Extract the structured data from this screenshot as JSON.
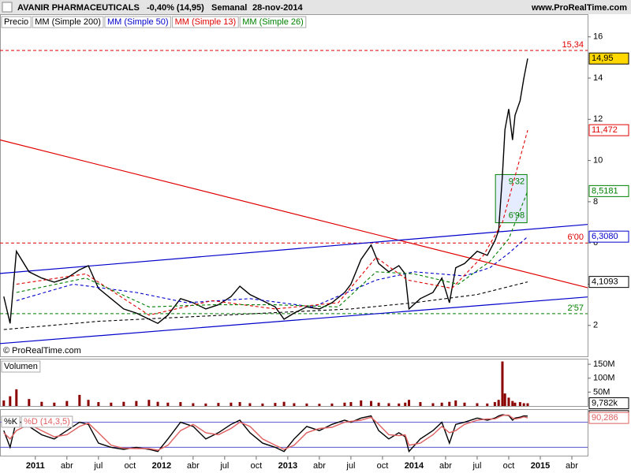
{
  "header": {
    "title": "AVANIR PHARMACEUTICALS",
    "change": "-0,40% (14,95)",
    "period": "Semanal",
    "date": "28-nov-2014",
    "site": "www.ProRealTime.com",
    "copyright": "© ProRealTime.com"
  },
  "chart_data": [
    {
      "type": "line",
      "xlim": [
        2010.72,
        2015.375
      ],
      "ylim": [
        0.5,
        17.1
      ],
      "xticks": [
        2011,
        {
          "value": 2011.25,
          "label": "abr"
        },
        {
          "value": 2011.5,
          "label": "jul"
        },
        {
          "value": 2011.75,
          "label": "oct"
        },
        2012,
        {
          "value": 2012.25,
          "label": "abr"
        },
        {
          "value": 2012.5,
          "label": "jul"
        },
        {
          "value": 2012.75,
          "label": "oct"
        },
        2013,
        {
          "value": 2013.25,
          "label": "abr"
        },
        {
          "value": 2013.5,
          "label": "jul"
        },
        {
          "value": 2013.75,
          "label": "oct"
        },
        2014,
        {
          "value": 2014.25,
          "label": "abr"
        },
        {
          "value": 2014.5,
          "label": "jul"
        },
        {
          "value": 2014.75,
          "label": "oct"
        },
        2015,
        {
          "value": 2015.25,
          "label": "abr"
        }
      ],
      "yticks": [
        2,
        4,
        6,
        8,
        10,
        12,
        14,
        16
      ],
      "x": [
        2010.75,
        2010.8,
        2010.85,
        2010.95,
        2011.05,
        2011.15,
        2011.25,
        2011.35,
        2011.42,
        2011.5,
        2011.6,
        2011.7,
        2011.8,
        2011.9,
        2011.97,
        2012.05,
        2012.15,
        2012.25,
        2012.35,
        2012.45,
        2012.55,
        2012.62,
        2012.7,
        2012.8,
        2012.9,
        2012.97,
        2013.05,
        2013.15,
        2013.25,
        2013.35,
        2013.45,
        2013.5,
        2013.58,
        2013.66,
        2013.72,
        2013.8,
        2013.88,
        2013.93,
        2013.96,
        2014.05,
        2014.15,
        2014.22,
        2014.28,
        2014.33,
        2014.4,
        2014.5,
        2014.58,
        2014.64,
        2014.67,
        2014.7,
        2014.72,
        2014.75,
        2014.78,
        2014.8,
        2014.84,
        2014.87,
        2014.9
      ],
      "series": [
        {
          "name": "Precio",
          "color": "#000000",
          "dash": false,
          "values": [
            3.4,
            2.1,
            5.6,
            4.6,
            4.3,
            4.1,
            4.3,
            4.7,
            4.9,
            3.8,
            3.3,
            2.8,
            2.6,
            2.3,
            2.1,
            2.5,
            3.3,
            3.1,
            2.8,
            3.0,
            3.4,
            3.9,
            3.5,
            3.2,
            2.9,
            2.3,
            2.6,
            2.9,
            2.8,
            3.1,
            3.6,
            4.0,
            5.2,
            5.9,
            5.0,
            4.6,
            4.9,
            4.5,
            2.8,
            3.3,
            3.6,
            4.3,
            3.1,
            4.8,
            5.0,
            5.6,
            5.4,
            6.1,
            6.6,
            9.3,
            11.5,
            12.5,
            11.0,
            12.2,
            12.9,
            14.0,
            14.95
          ]
        },
        {
          "name": "MM (Simple 200)",
          "color": "#000000",
          "dash": true,
          "x": [
            2010.75,
            2011.5,
            2012.5,
            2013.5,
            2014.0,
            2014.5,
            2014.9
          ],
          "values": [
            1.8,
            2.2,
            2.5,
            2.8,
            3.1,
            3.5,
            4.1093
          ]
        },
        {
          "name": "MM (Simple 50)",
          "color": "#0000cc",
          "dash": true,
          "x": [
            2010.85,
            2011.3,
            2011.8,
            2012.2,
            2012.7,
            2013.2,
            2013.7,
            2014.0,
            2014.4,
            2014.6,
            2014.75,
            2014.9
          ],
          "values": [
            3.2,
            4.0,
            3.6,
            3.1,
            3.3,
            2.9,
            4.2,
            4.6,
            4.4,
            4.8,
            5.5,
            6.308
          ]
        },
        {
          "name": "MM (Simple 13)",
          "color": "#e00000",
          "dash": true,
          "x": [
            2010.85,
            2011.4,
            2011.9,
            2012.4,
            2012.9,
            2013.4,
            2013.7,
            2013.95,
            2014.3,
            2014.55,
            2014.7,
            2014.9
          ],
          "values": [
            4.0,
            4.5,
            2.5,
            3.2,
            2.8,
            3.1,
            5.3,
            4.2,
            3.8,
            5.4,
            7.0,
            11.472
          ]
        },
        {
          "name": "MM (Simple 26)",
          "color": "#008000",
          "dash": true,
          "x": [
            2010.85,
            2011.4,
            2011.9,
            2012.4,
            2012.9,
            2013.4,
            2013.7,
            2014.0,
            2014.35,
            2014.6,
            2014.75,
            2014.9
          ],
          "values": [
            3.6,
            4.3,
            2.9,
            3.0,
            3.0,
            2.9,
            4.6,
            4.5,
            4.0,
            5.1,
            6.2,
            8.5181
          ]
        }
      ],
      "trend_lines": [
        {
          "color": "#e00000",
          "x": [
            2010.72,
            2015.375
          ],
          "values": [
            11.0,
            3.83
          ]
        },
        {
          "color": "#0000cc",
          "x": [
            2010.72,
            2015.375
          ],
          "values": [
            4.52,
            6.9
          ]
        },
        {
          "color": "#0000cc",
          "x": [
            2010.72,
            2015.375
          ],
          "values": [
            1.12,
            3.38
          ]
        }
      ],
      "levels": [
        {
          "value": 15.34,
          "label": "15,34",
          "color": "#e00000"
        },
        {
          "value": 6.0,
          "label": "6'00",
          "color": "#e00000"
        },
        {
          "value": 2.57,
          "label": "2'57",
          "color": "#008000"
        }
      ],
      "zone": {
        "x": [
          2014.645,
          2014.895
        ],
        "low": 6.98,
        "high": 9.32,
        "low_label": "6'98",
        "high_label": "9'32",
        "color": "#008000"
      },
      "price_labels": [
        {
          "value": 14.95,
          "label": "14,95",
          "color": "#000000",
          "fill": "#ffd800"
        },
        {
          "value": 11.472,
          "label": "11,472",
          "color": "#e00000",
          "fill": "#ffffff"
        },
        {
          "value": 8.5181,
          "label": "8,5181",
          "color": "#008000",
          "fill": "#ffffff"
        },
        {
          "value": 6.308,
          "label": "6,3080",
          "color": "#0000cc",
          "fill": "#ffffff"
        },
        {
          "value": 4.1093,
          "label": "4,1093",
          "color": "#000000",
          "fill": "#ffffff"
        }
      ]
    },
    {
      "type": "bar",
      "title": "Volumen",
      "color": "#8b0000",
      "ylim": [
        0,
        170000000
      ],
      "yticks": [
        {
          "value": 150000000,
          "label": "150M"
        },
        {
          "value": 100000000,
          "label": "100M"
        },
        {
          "value": 50000000,
          "label": "50M"
        }
      ],
      "values": [
        20000000,
        35000000,
        60000000,
        25000000,
        15000000,
        12000000,
        18000000,
        40000000,
        22000000,
        14000000,
        12000000,
        15000000,
        18000000,
        22000000,
        15000000,
        12000000,
        14000000,
        10000000,
        9000000,
        11000000,
        12000000,
        14000000,
        10000000,
        9000000,
        11000000,
        15000000,
        10000000,
        9000000,
        8000000,
        9000000,
        12000000,
        14000000,
        20000000,
        18000000,
        12000000,
        10000000,
        9000000,
        12000000,
        22000000,
        14000000,
        10000000,
        12000000,
        15000000,
        20000000,
        12000000,
        10000000,
        9000000,
        14000000,
        22000000,
        160000000,
        45000000,
        30000000,
        18000000,
        12000000,
        14000000,
        10000000,
        9782000
      ],
      "end_labels": [
        {
          "value": 9782000,
          "label": "9,782k",
          "color": "#000000"
        }
      ]
    },
    {
      "type": "line",
      "ylim": [
        0,
        100
      ],
      "levels": [
        20,
        80
      ],
      "series": [
        {
          "name": "%K",
          "color": "#000000",
          "values": [
            60,
            20,
            85,
            70,
            50,
            40,
            60,
            80,
            75,
            30,
            20,
            15,
            20,
            15,
            10,
            40,
            80,
            70,
            40,
            55,
            75,
            85,
            55,
            30,
            20,
            10,
            40,
            70,
            60,
            75,
            85,
            80,
            90,
            95,
            60,
            40,
            55,
            45,
            10,
            40,
            60,
            80,
            30,
            75,
            80,
            90,
            85,
            90,
            95,
            98,
            97,
            96,
            85,
            90,
            92,
            95,
            94.639
          ]
        },
        {
          "name": "%D (14,3,5)",
          "color": "#e06060",
          "values": [
            55,
            40,
            60,
            75,
            60,
            45,
            50,
            70,
            78,
            55,
            25,
            18,
            17,
            17,
            13,
            25,
            60,
            75,
            55,
            50,
            65,
            80,
            70,
            40,
            25,
            15,
            25,
            55,
            65,
            68,
            80,
            82,
            85,
            92,
            75,
            50,
            48,
            50,
            25,
            30,
            50,
            70,
            55,
            60,
            75,
            85,
            88,
            88,
            92,
            96,
            97,
            97,
            90,
            88,
            90,
            93,
            90.286
          ]
        }
      ],
      "end_labels": [
        {
          "value": 94.639,
          "label": "94,639",
          "color": "#000000"
        },
        {
          "value": 90.286,
          "label": "90,286",
          "color": "#e06060"
        }
      ]
    }
  ]
}
